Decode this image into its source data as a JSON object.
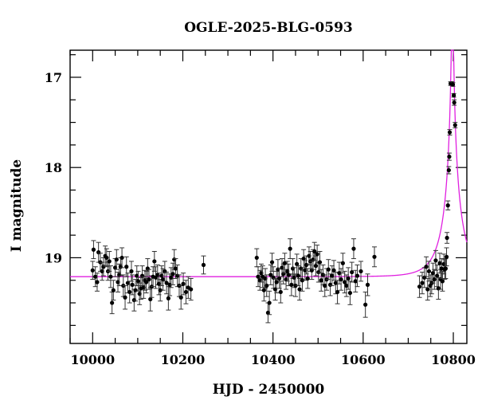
{
  "chart_data": {
    "type": "scatter",
    "title": "OGLE-2025-BLG-0593",
    "xlabel": "HJD - 2450000",
    "ylabel": "I magnitude",
    "xlim": [
      9950,
      10830
    ],
    "ylim": [
      19.95,
      16.7
    ],
    "y_inverted": true,
    "x_major_ticks": [
      10000,
      10200,
      10400,
      10600,
      10800
    ],
    "x_minor_step": 50,
    "y_major_ticks": [
      17,
      18,
      19
    ],
    "y_minor_step": 0.25,
    "grid": false,
    "colors": {
      "points": "#000000",
      "model": "#e020e0",
      "frame": "#000000"
    },
    "series": [
      {
        "kind": "observations",
        "points": [
          [
            10000,
            19.14,
            0.1
          ],
          [
            10002,
            18.91,
            0.1
          ],
          [
            10006,
            19.21,
            0.11
          ],
          [
            10010,
            19.27,
            0.1
          ],
          [
            10013,
            18.94,
            0.11
          ],
          [
            10017,
            19.05,
            0.1
          ],
          [
            10021,
            19.15,
            0.1
          ],
          [
            10024,
            19.1,
            0.1
          ],
          [
            10028,
            18.98,
            0.11
          ],
          [
            10031,
            19.0,
            0.1
          ],
          [
            10034,
            19.15,
            0.1
          ],
          [
            10037,
            19.04,
            0.11
          ],
          [
            10040,
            19.21,
            0.12
          ],
          [
            10043,
            19.5,
            0.12
          ],
          [
            10046,
            19.36,
            0.11
          ],
          [
            10050,
            19.11,
            0.1
          ],
          [
            10053,
            19.02,
            0.11
          ],
          [
            10056,
            19.27,
            0.11
          ],
          [
            10059,
            19.19,
            0.12
          ],
          [
            10062,
            19.1,
            0.1
          ],
          [
            10065,
            19.0,
            0.11
          ],
          [
            10068,
            19.31,
            0.12
          ],
          [
            10072,
            19.44,
            0.13
          ],
          [
            10075,
            19.1,
            0.11
          ],
          [
            10078,
            19.28,
            0.11
          ],
          [
            10082,
            19.38,
            0.12
          ],
          [
            10086,
            19.15,
            0.11
          ],
          [
            10088,
            19.3,
            0.11
          ],
          [
            10092,
            19.47,
            0.12
          ],
          [
            10095,
            19.36,
            0.12
          ],
          [
            10098,
            19.2,
            0.11
          ],
          [
            10101,
            19.26,
            0.11
          ],
          [
            10104,
            19.4,
            0.12
          ],
          [
            10107,
            19.34,
            0.12
          ],
          [
            10110,
            19.2,
            0.11
          ],
          [
            10113,
            19.33,
            0.12
          ],
          [
            10116,
            19.25,
            0.11
          ],
          [
            10119,
            19.27,
            0.12
          ],
          [
            10122,
            19.12,
            0.11
          ],
          [
            10125,
            19.24,
            0.11
          ],
          [
            10128,
            19.46,
            0.13
          ],
          [
            10131,
            19.32,
            0.12
          ],
          [
            10134,
            19.21,
            0.11
          ],
          [
            10137,
            19.04,
            0.11
          ],
          [
            10140,
            19.22,
            0.12
          ],
          [
            10144,
            19.19,
            0.11
          ],
          [
            10147,
            19.29,
            0.12
          ],
          [
            10150,
            19.36,
            0.12
          ],
          [
            10153,
            19.2,
            0.11
          ],
          [
            10156,
            19.24,
            0.12
          ],
          [
            10160,
            19.15,
            0.11
          ],
          [
            10164,
            19.28,
            0.12
          ],
          [
            10168,
            19.45,
            0.13
          ],
          [
            10171,
            19.3,
            0.12
          ],
          [
            10174,
            19.22,
            0.11
          ],
          [
            10178,
            19.18,
            0.12
          ],
          [
            10181,
            19.02,
            0.11
          ],
          [
            10184,
            19.12,
            0.11
          ],
          [
            10188,
            19.2,
            0.12
          ],
          [
            10192,
            19.31,
            0.12
          ],
          [
            10196,
            19.44,
            0.13
          ],
          [
            10201,
            19.29,
            0.12
          ],
          [
            10207,
            19.38,
            0.13
          ],
          [
            10212,
            19.33,
            0.12
          ],
          [
            10218,
            19.35,
            0.12
          ],
          [
            10246,
            19.08,
            0.1
          ],
          [
            10364,
            19.0,
            0.1
          ],
          [
            10367,
            19.21,
            0.11
          ],
          [
            10371,
            19.25,
            0.11
          ],
          [
            10374,
            19.17,
            0.1
          ],
          [
            10377,
            19.21,
            0.12
          ],
          [
            10380,
            19.36,
            0.12
          ],
          [
            10383,
            19.23,
            0.11
          ],
          [
            10386,
            19.31,
            0.12
          ],
          [
            10389,
            19.61,
            0.11
          ],
          [
            10392,
            19.5,
            0.13
          ],
          [
            10395,
            19.19,
            0.11
          ],
          [
            10398,
            19.05,
            0.1
          ],
          [
            10401,
            19.22,
            0.12
          ],
          [
            10405,
            19.35,
            0.12
          ],
          [
            10408,
            19.27,
            0.12
          ],
          [
            10411,
            19.13,
            0.11
          ],
          [
            10414,
            19.23,
            0.11
          ],
          [
            10417,
            19.38,
            0.12
          ],
          [
            10420,
            19.11,
            0.1
          ],
          [
            10423,
            19.18,
            0.11
          ],
          [
            10426,
            19.06,
            0.11
          ],
          [
            10429,
            19.24,
            0.11
          ],
          [
            10432,
            19.15,
            0.11
          ],
          [
            10435,
            19.19,
            0.12
          ],
          [
            10438,
            18.9,
            0.11
          ],
          [
            10441,
            19.3,
            0.12
          ],
          [
            10444,
            19.12,
            0.11
          ],
          [
            10447,
            19.22,
            0.11
          ],
          [
            10450,
            19.31,
            0.12
          ],
          [
            10453,
            19.07,
            0.11
          ],
          [
            10456,
            19.2,
            0.11
          ],
          [
            10459,
            19.35,
            0.12
          ],
          [
            10462,
            19.12,
            0.11
          ],
          [
            10465,
            19.25,
            0.12
          ],
          [
            10468,
            19.01,
            0.1
          ],
          [
            10471,
            19.14,
            0.11
          ],
          [
            10474,
            19.08,
            0.1
          ],
          [
            10477,
            19.23,
            0.11
          ],
          [
            10480,
            18.98,
            0.1
          ],
          [
            10483,
            19.04,
            0.11
          ],
          [
            10486,
            19.14,
            0.1
          ],
          [
            10489,
            19.02,
            0.11
          ],
          [
            10492,
            18.93,
            0.1
          ],
          [
            10495,
            19.09,
            0.11
          ],
          [
            10498,
            18.96,
            0.1
          ],
          [
            10501,
            19.16,
            0.11
          ],
          [
            10504,
            19.05,
            0.12
          ],
          [
            10507,
            19.25,
            0.12
          ],
          [
            10511,
            19.19,
            0.11
          ],
          [
            10515,
            19.31,
            0.12
          ],
          [
            10519,
            19.24,
            0.12
          ],
          [
            10523,
            19.13,
            0.11
          ],
          [
            10527,
            19.3,
            0.12
          ],
          [
            10531,
            19.2,
            0.11
          ],
          [
            10535,
            19.14,
            0.11
          ],
          [
            10539,
            19.28,
            0.12
          ],
          [
            10543,
            19.38,
            0.13
          ],
          [
            10547,
            19.17,
            0.12
          ],
          [
            10551,
            19.24,
            0.12
          ],
          [
            10555,
            19.06,
            0.11
          ],
          [
            10559,
            19.27,
            0.12
          ],
          [
            10563,
            19.31,
            0.12
          ],
          [
            10567,
            19.23,
            0.12
          ],
          [
            10571,
            19.39,
            0.13
          ],
          [
            10575,
            19.16,
            0.11
          ],
          [
            10579,
            18.9,
            0.11
          ],
          [
            10583,
            19.26,
            0.12
          ],
          [
            10587,
            19.2,
            0.12
          ],
          [
            10595,
            19.15,
            0.11
          ],
          [
            10605,
            19.52,
            0.14
          ],
          [
            10610,
            19.3,
            0.12
          ],
          [
            10625,
            18.99,
            0.11
          ],
          [
            10725,
            19.32,
            0.12
          ],
          [
            10731,
            19.28,
            0.12
          ],
          [
            10736,
            19.22,
            0.11
          ],
          [
            10740,
            19.1,
            0.11
          ],
          [
            10743,
            19.35,
            0.12
          ],
          [
            10746,
            19.15,
            0.11
          ],
          [
            10749,
            19.31,
            0.12
          ],
          [
            10752,
            19.28,
            0.12
          ],
          [
            10755,
            19.17,
            0.11
          ],
          [
            10758,
            19.24,
            0.11
          ],
          [
            10761,
            19.03,
            0.11
          ],
          [
            10764,
            19.2,
            0.12
          ],
          [
            10767,
            19.34,
            0.12
          ],
          [
            10770,
            19.06,
            0.11
          ],
          [
            10772,
            19.24,
            0.11
          ],
          [
            10774,
            19.12,
            0.11
          ],
          [
            10776,
            19.26,
            0.11
          ],
          [
            10779,
            19.07,
            0.11
          ],
          [
            10781,
            19.13,
            0.11
          ],
          [
            10783,
            19.12,
            0.11
          ],
          [
            10785,
            18.99,
            0.1
          ],
          [
            10786,
            18.78,
            0.06
          ],
          [
            10788,
            18.42,
            0.05
          ],
          [
            10790,
            18.03,
            0.04
          ],
          [
            10791,
            17.88,
            0.04
          ],
          [
            10792,
            17.61,
            0.03
          ],
          [
            10794,
            17.07,
            0.02
          ],
          [
            10797,
            17.07,
            0.02
          ],
          [
            10799,
            17.08,
            0.02
          ],
          [
            10801,
            17.2,
            0.02
          ],
          [
            10802,
            17.28,
            0.03
          ],
          [
            10804,
            17.53,
            0.03
          ]
        ]
      },
      {
        "kind": "model",
        "baseline": 19.21,
        "t0": 10798,
        "u0": 0.032,
        "tE": 45,
        "fs": 0.64
      }
    ]
  }
}
